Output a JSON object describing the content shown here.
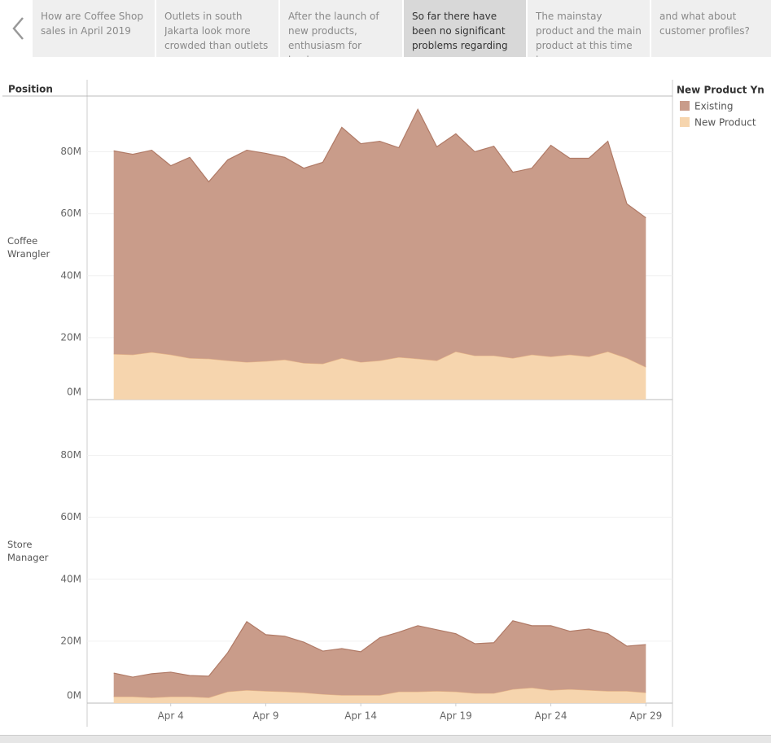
{
  "story": {
    "tabs": [
      "How are Coffee Shop sales in April 2019",
      "Outlets in south Jakarta look more crowded than outlets",
      "After the launch of new products, enthusiasm for buying",
      "So far there have been no significant problems regarding",
      "The mainstay product and the main product at this time is",
      "and what about customer profiles?"
    ],
    "selected": 3
  },
  "chart_data": [
    {
      "type": "area",
      "row_header": "Position",
      "legend_title": "New Product Yn",
      "label": "Coffee Wrangler",
      "x": [
        1,
        2,
        3,
        4,
        5,
        6,
        7,
        8,
        9,
        10,
        11,
        12,
        13,
        14,
        15,
        16,
        17,
        18,
        19,
        20,
        21,
        22,
        23,
        24,
        25,
        26,
        27,
        28,
        29
      ],
      "xlim": [
        -0.4,
        30.4
      ],
      "ylim": [
        0,
        98000000
      ],
      "yticks": [
        {
          "value": 0,
          "label": "0M"
        },
        {
          "value": 20000000,
          "label": "20M"
        },
        {
          "value": 40000000,
          "label": "40M"
        },
        {
          "value": 60000000,
          "label": "60M"
        },
        {
          "value": 80000000,
          "label": "80M"
        }
      ],
      "grid": true,
      "stacked": true,
      "series": [
        {
          "name": "Existing",
          "color": "#c99c8a",
          "stroke": "#b07a66",
          "values": [
            65600000,
            64700000,
            65200000,
            61000000,
            64800000,
            57100000,
            64800000,
            68400000,
            67100000,
            65300000,
            62900000,
            65000000,
            74500000,
            70500000,
            70800000,
            67600000,
            80500000,
            69000000,
            70300000,
            65800000,
            67600000,
            60000000,
            60200000,
            68200000,
            63400000,
            64000000,
            67900000,
            49800000,
            48200000
          ]
        },
        {
          "name": "New Product",
          "color": "#f6d5ae",
          "stroke": "#e6b487",
          "values": [
            14700000,
            14500000,
            15300000,
            14500000,
            13400000,
            13200000,
            12600000,
            12100000,
            12400000,
            12900000,
            11800000,
            11600000,
            13400000,
            12100000,
            12600000,
            13700000,
            13200000,
            12600000,
            15500000,
            14200000,
            14200000,
            13400000,
            14500000,
            13900000,
            14500000,
            13900000,
            15500000,
            13400000,
            10500000
          ]
        }
      ]
    },
    {
      "type": "area",
      "label": "Store Manager",
      "x": [
        1,
        2,
        3,
        4,
        5,
        6,
        7,
        8,
        9,
        10,
        11,
        12,
        13,
        14,
        15,
        16,
        17,
        18,
        19,
        20,
        21,
        22,
        23,
        24,
        25,
        26,
        27,
        28,
        29
      ],
      "xlim": [
        -0.4,
        30.4
      ],
      "xticks": [
        {
          "value": 4,
          "label": "Apr 4"
        },
        {
          "value": 9,
          "label": "Apr 9"
        },
        {
          "value": 14,
          "label": "Apr 14"
        },
        {
          "value": 19,
          "label": "Apr 19"
        },
        {
          "value": 24,
          "label": "Apr 24"
        },
        {
          "value": 29,
          "label": "Apr 29"
        }
      ],
      "ylim": [
        0,
        98000000
      ],
      "yticks": [
        {
          "value": 0,
          "label": "0M"
        },
        {
          "value": 20000000,
          "label": "20M"
        },
        {
          "value": 40000000,
          "label": "40M"
        },
        {
          "value": 60000000,
          "label": "60M"
        },
        {
          "value": 80000000,
          "label": "80M"
        }
      ],
      "grid": true,
      "stacked": true,
      "series": [
        {
          "name": "Existing",
          "color": "#c99c8a",
          "stroke": "#b07a66",
          "values": [
            7600000,
            6300000,
            7700000,
            7900000,
            6800000,
            6900000,
            12600000,
            22100000,
            18200000,
            17900000,
            16300000,
            13900000,
            15000000,
            14000000,
            18500000,
            19200000,
            21300000,
            19800000,
            18700000,
            16000000,
            16300000,
            22100000,
            20000000,
            20800000,
            18700000,
            19700000,
            18500000,
            14500000,
            15500000
          ]
        },
        {
          "name": "New Product",
          "color": "#f6d5ae",
          "stroke": "#e6b487",
          "values": [
            2100000,
            2100000,
            1800000,
            2100000,
            2100000,
            1800000,
            3700000,
            4200000,
            3900000,
            3700000,
            3400000,
            2900000,
            2600000,
            2600000,
            2600000,
            3700000,
            3700000,
            3900000,
            3700000,
            3200000,
            3200000,
            4500000,
            5000000,
            4200000,
            4500000,
            4200000,
            3900000,
            3900000,
            3400000
          ]
        }
      ]
    }
  ]
}
